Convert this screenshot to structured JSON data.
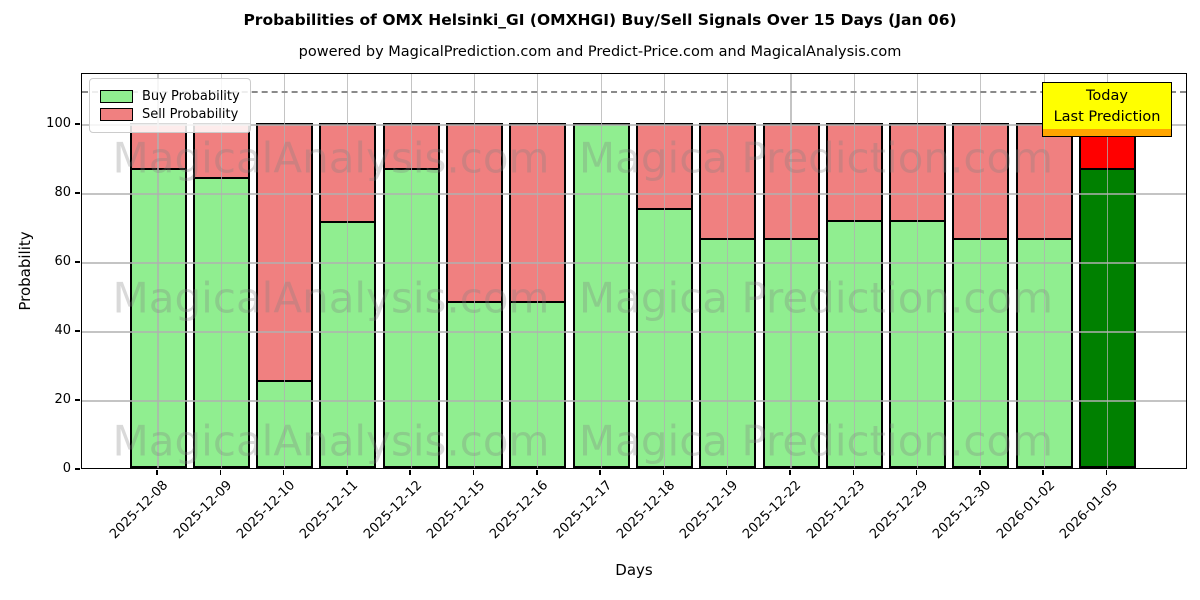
{
  "title": "Probabilities of OMX Helsinki_GI (OMXHGI) Buy/Sell Signals Over 15 Days (Jan 06)",
  "subtitle": "powered by MagicalPrediction.com and Predict-Price.com and MagicalAnalysis.com",
  "legend": {
    "items": [
      {
        "label": "Buy Probability",
        "color": "#90ee90"
      },
      {
        "label": "Sell Probability",
        "color": "#f08080"
      }
    ]
  },
  "annotation": {
    "lines": [
      "Today",
      "Last Prediction"
    ],
    "bg": "#ffff00"
  },
  "watermarks": {
    "left": "MagicalAnalysis.com",
    "right": "Magica Prediction.com"
  },
  "axes": {
    "xlabel": "Days",
    "ylabel": "Probability",
    "yticks": [
      0,
      20,
      40,
      60,
      80,
      100
    ],
    "ymax": 114.8,
    "dashed_line_y": 110
  },
  "colors": {
    "buy": "#90ee90",
    "sell": "#f08080",
    "today_buy": "#008000",
    "today_sell": "#ff0000",
    "grid": "#b0b0b0",
    "annotation_bg": "#ffff00"
  },
  "chart_data": {
    "type": "bar",
    "stacked": true,
    "title": "Probabilities of OMX Helsinki_GI (OMXHGI) Buy/Sell Signals Over 15 Days (Jan 06)",
    "xlabel": "Days",
    "ylabel": "Probability",
    "ylim": [
      0,
      114.8
    ],
    "grid": true,
    "legend_position": "upper left",
    "today_index": 15,
    "categories": [
      "2025-12-08",
      "2025-12-09",
      "2025-12-10",
      "2025-12-11",
      "2025-12-12",
      "2025-12-15",
      "2025-12-16",
      "2025-12-17",
      "2025-12-18",
      "2025-12-19",
      "2025-12-22",
      "2025-12-23",
      "2025-12-29",
      "2025-12-30",
      "2026-01-02",
      "2026-01-05"
    ],
    "series": [
      {
        "name": "Buy Probability",
        "color": "#90ee90",
        "today_color": "#008000",
        "values": [
          87,
          84.5,
          25.5,
          71.5,
          87,
          48.5,
          48.5,
          100,
          75.5,
          66.7,
          66.7,
          72,
          72,
          66.7,
          66.7,
          87
        ]
      },
      {
        "name": "Sell Probability",
        "color": "#f08080",
        "today_color": "#ff0000",
        "values": [
          13,
          15.5,
          74.5,
          28.5,
          13,
          51.5,
          51.5,
          0,
          24.5,
          33.3,
          33.3,
          28,
          28,
          33.3,
          33.3,
          13
        ]
      }
    ]
  }
}
